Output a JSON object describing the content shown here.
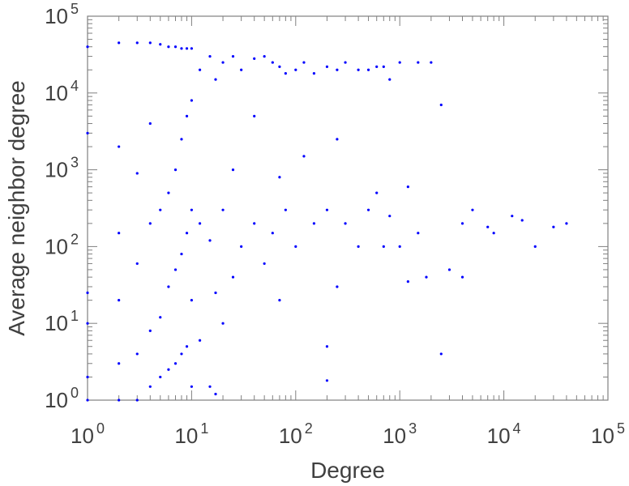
{
  "chart_data": {
    "type": "scatter",
    "xscale": "log",
    "yscale": "log",
    "xlim": [
      1,
      100000
    ],
    "ylim": [
      1,
      100000
    ],
    "xlabel": "Degree",
    "ylabel": "Average neighbor degree",
    "x_ticks": [
      {
        "base": "10",
        "exp": "0",
        "value": 1
      },
      {
        "base": "10",
        "exp": "1",
        "value": 10
      },
      {
        "base": "10",
        "exp": "2",
        "value": 100
      },
      {
        "base": "10",
        "exp": "3",
        "value": 1000
      },
      {
        "base": "10",
        "exp": "4",
        "value": 10000
      },
      {
        "base": "10",
        "exp": "5",
        "value": 100000
      }
    ],
    "y_ticks": [
      {
        "base": "10",
        "exp": "0",
        "value": 1
      },
      {
        "base": "10",
        "exp": "1",
        "value": 10
      },
      {
        "base": "10",
        "exp": "2",
        "value": 100
      },
      {
        "base": "10",
        "exp": "3",
        "value": 1000
      },
      {
        "base": "10",
        "exp": "4",
        "value": 10000
      },
      {
        "base": "10",
        "exp": "5",
        "value": 100000
      }
    ],
    "grid": false,
    "legend": "none",
    "point_color": "#0000ff",
    "series": [
      {
        "points": [
          {
            "x": 1,
            "y": 1
          },
          {
            "x": 1,
            "y": 2
          },
          {
            "x": 1,
            "y": 10
          },
          {
            "x": 1,
            "y": 25
          },
          {
            "x": 1,
            "y": 3000
          },
          {
            "x": 1,
            "y": 40000
          },
          {
            "x": 2,
            "y": 1
          },
          {
            "x": 2,
            "y": 3
          },
          {
            "x": 2,
            "y": 20
          },
          {
            "x": 2,
            "y": 150
          },
          {
            "x": 2,
            "y": 2000
          },
          {
            "x": 2,
            "y": 45000
          },
          {
            "x": 3,
            "y": 1
          },
          {
            "x": 3,
            "y": 4
          },
          {
            "x": 3,
            "y": 60
          },
          {
            "x": 3,
            "y": 900
          },
          {
            "x": 3,
            "y": 45000
          },
          {
            "x": 4,
            "y": 1.5
          },
          {
            "x": 4,
            "y": 8
          },
          {
            "x": 4,
            "y": 200
          },
          {
            "x": 4,
            "y": 4000
          },
          {
            "x": 4,
            "y": 45000
          },
          {
            "x": 5,
            "y": 2
          },
          {
            "x": 5,
            "y": 12
          },
          {
            "x": 5,
            "y": 300
          },
          {
            "x": 5,
            "y": 43000
          },
          {
            "x": 6,
            "y": 2.5
          },
          {
            "x": 6,
            "y": 30
          },
          {
            "x": 6,
            "y": 500
          },
          {
            "x": 6,
            "y": 40000
          },
          {
            "x": 7,
            "y": 3
          },
          {
            "x": 7,
            "y": 50
          },
          {
            "x": 7,
            "y": 1000
          },
          {
            "x": 7,
            "y": 40000
          },
          {
            "x": 8,
            "y": 4
          },
          {
            "x": 8,
            "y": 80
          },
          {
            "x": 8,
            "y": 2500
          },
          {
            "x": 8,
            "y": 38000
          },
          {
            "x": 9,
            "y": 5
          },
          {
            "x": 9,
            "y": 150
          },
          {
            "x": 9,
            "y": 5000
          },
          {
            "x": 9,
            "y": 38000
          },
          {
            "x": 10,
            "y": 1.5
          },
          {
            "x": 10,
            "y": 20
          },
          {
            "x": 10,
            "y": 300
          },
          {
            "x": 10,
            "y": 8000
          },
          {
            "x": 10,
            "y": 38000
          },
          {
            "x": 12,
            "y": 6
          },
          {
            "x": 12,
            "y": 200
          },
          {
            "x": 12,
            "y": 20000
          },
          {
            "x": 15,
            "y": 1.5
          },
          {
            "x": 15,
            "y": 120
          },
          {
            "x": 15,
            "y": 30000
          },
          {
            "x": 17,
            "y": 1.2
          },
          {
            "x": 17,
            "y": 25
          },
          {
            "x": 17,
            "y": 15000
          },
          {
            "x": 20,
            "y": 10
          },
          {
            "x": 20,
            "y": 300
          },
          {
            "x": 20,
            "y": 25000
          },
          {
            "x": 25,
            "y": 40
          },
          {
            "x": 25,
            "y": 1000
          },
          {
            "x": 25,
            "y": 30000
          },
          {
            "x": 30,
            "y": 100
          },
          {
            "x": 30,
            "y": 20000
          },
          {
            "x": 40,
            "y": 200
          },
          {
            "x": 40,
            "y": 5000
          },
          {
            "x": 40,
            "y": 28000
          },
          {
            "x": 50,
            "y": 60
          },
          {
            "x": 50,
            "y": 30000
          },
          {
            "x": 60,
            "y": 150
          },
          {
            "x": 60,
            "y": 25000
          },
          {
            "x": 70,
            "y": 20
          },
          {
            "x": 70,
            "y": 800
          },
          {
            "x": 70,
            "y": 22000
          },
          {
            "x": 80,
            "y": 300
          },
          {
            "x": 80,
            "y": 18000
          },
          {
            "x": 100,
            "y": 100
          },
          {
            "x": 100,
            "y": 20000
          },
          {
            "x": 120,
            "y": 1500
          },
          {
            "x": 120,
            "y": 25000
          },
          {
            "x": 150,
            "y": 200
          },
          {
            "x": 150,
            "y": 18000
          },
          {
            "x": 200,
            "y": 5
          },
          {
            "x": 200,
            "y": 1.8
          },
          {
            "x": 200,
            "y": 300
          },
          {
            "x": 200,
            "y": 22000
          },
          {
            "x": 250,
            "y": 30
          },
          {
            "x": 250,
            "y": 2500
          },
          {
            "x": 250,
            "y": 20000
          },
          {
            "x": 300,
            "y": 200
          },
          {
            "x": 300,
            "y": 25000
          },
          {
            "x": 400,
            "y": 100
          },
          {
            "x": 400,
            "y": 20000
          },
          {
            "x": 500,
            "y": 300
          },
          {
            "x": 500,
            "y": 20000
          },
          {
            "x": 600,
            "y": 500
          },
          {
            "x": 600,
            "y": 22000
          },
          {
            "x": 700,
            "y": 100
          },
          {
            "x": 700,
            "y": 22000
          },
          {
            "x": 800,
            "y": 250
          },
          {
            "x": 800,
            "y": 15000
          },
          {
            "x": 1000,
            "y": 100
          },
          {
            "x": 1000,
            "y": 25000
          },
          {
            "x": 1200,
            "y": 35
          },
          {
            "x": 1200,
            "y": 600
          },
          {
            "x": 1500,
            "y": 150
          },
          {
            "x": 1500,
            "y": 25000
          },
          {
            "x": 1800,
            "y": 40
          },
          {
            "x": 2000,
            "y": 25000
          },
          {
            "x": 2500,
            "y": 4
          },
          {
            "x": 2500,
            "y": 7000
          },
          {
            "x": 3000,
            "y": 50
          },
          {
            "x": 4000,
            "y": 40
          },
          {
            "x": 4000,
            "y": 200
          },
          {
            "x": 5000,
            "y": 300
          },
          {
            "x": 7000,
            "y": 180
          },
          {
            "x": 8000,
            "y": 150
          },
          {
            "x": 12000,
            "y": 250
          },
          {
            "x": 15000,
            "y": 220
          },
          {
            "x": 20000,
            "y": 100
          },
          {
            "x": 30000,
            "y": 180
          },
          {
            "x": 40000,
            "y": 200
          }
        ]
      }
    ]
  }
}
